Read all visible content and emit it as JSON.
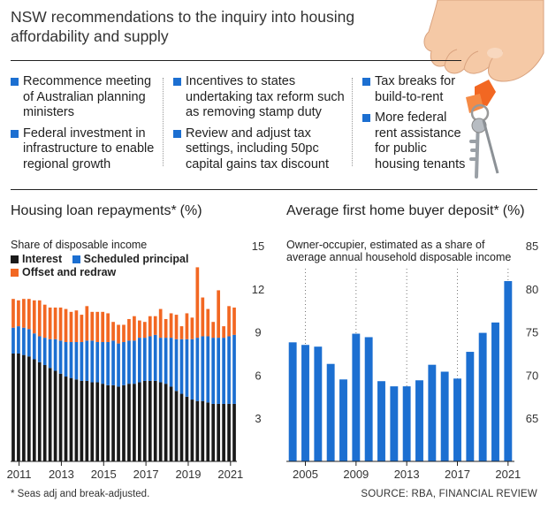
{
  "header": {
    "title": "NSW recommendations to the inquiry into housing affordability and supply"
  },
  "recommendations": {
    "col1": [
      "Recommence meeting of Australian planning ministers",
      "Federal investment in infrastructure to enable regional growth"
    ],
    "col2": [
      "Incentives to states undertaking tax reform such as removing stamp duty",
      "Review and adjust tax settings, including 50pc capital gains tax discount"
    ],
    "col3": [
      "Tax breaks for build-to-rent",
      "More federal rent assistance for public housing tenants"
    ]
  },
  "colors": {
    "interest": "#1a1a1a",
    "scheduled": "#1c6fd1",
    "offset": "#f26722",
    "accent": "#1c6fd1"
  },
  "icons": {
    "illustration": "hand-holding-keys"
  },
  "chart_data": [
    {
      "type": "bar",
      "title": "Housing loan repayments* (%)",
      "subtitle": "Share of disposable income",
      "stacked": true,
      "xticks": [
        "2011",
        "2013",
        "2015",
        "2017",
        "2019",
        "2021"
      ],
      "xrange": [
        2010.6,
        2021.3
      ],
      "ylim": [
        0,
        15
      ],
      "yticks": [
        3,
        6,
        9,
        12,
        15
      ],
      "legend_placement": "top-left",
      "series": [
        {
          "name": "Interest",
          "values": [
            7.5,
            7.5,
            7.4,
            7.3,
            7.1,
            6.9,
            6.7,
            6.5,
            6.3,
            6.1,
            5.9,
            5.8,
            5.7,
            5.6,
            5.6,
            5.5,
            5.5,
            5.4,
            5.3,
            5.3,
            5.2,
            5.3,
            5.4,
            5.4,
            5.5,
            5.6,
            5.6,
            5.6,
            5.5,
            5.4,
            5.2,
            4.9,
            4.7,
            4.5,
            4.3,
            4.2,
            4.2,
            4.1,
            4.0,
            4.0,
            4.0,
            4.0,
            4.0
          ]
        },
        {
          "name": "Scheduled principal",
          "values": [
            1.8,
            1.9,
            1.9,
            1.9,
            1.8,
            1.8,
            1.9,
            2.0,
            2.2,
            2.3,
            2.4,
            2.5,
            2.6,
            2.7,
            2.8,
            2.9,
            2.8,
            2.9,
            3.0,
            3.1,
            3.0,
            3.0,
            3.0,
            3.0,
            3.1,
            3.0,
            3.1,
            3.2,
            3.1,
            3.2,
            3.4,
            3.6,
            3.8,
            4.0,
            4.2,
            4.4,
            4.5,
            4.6,
            4.6,
            4.6,
            4.6,
            4.7,
            4.8
          ]
        },
        {
          "name": "Offset and redraw",
          "values": [
            2.0,
            1.8,
            2.0,
            2.1,
            2.3,
            2.5,
            2.3,
            2.2,
            2.2,
            2.3,
            2.3,
            2.1,
            2.2,
            1.9,
            2.4,
            2.0,
            2.1,
            2.1,
            2.0,
            1.3,
            1.3,
            1.2,
            1.5,
            1.7,
            1.2,
            1.1,
            1.4,
            1.3,
            2.0,
            1.3,
            1.7,
            1.7,
            0.9,
            1.8,
            1.5,
            4.9,
            2.7,
            1.9,
            1.1,
            3.3,
            0.8,
            2.1,
            1.9
          ]
        }
      ]
    },
    {
      "type": "bar",
      "title": "Average first home buyer deposit* (%)",
      "subtitle": "Owner-occupier, estimated as a share of average annual household disposable income",
      "categories": [
        "2004",
        "2005",
        "2006",
        "2007",
        "2008",
        "2009",
        "2010",
        "2011",
        "2012",
        "2013",
        "2014",
        "2015",
        "2016",
        "2017",
        "2018",
        "2019",
        "2020",
        "2021"
      ],
      "xticks": [
        "2005",
        "2009",
        "2013",
        "2017",
        "2021"
      ],
      "values": [
        73.8,
        73.5,
        73.3,
        71.3,
        69.5,
        74.8,
        74.4,
        69.3,
        68.7,
        68.7,
        69.4,
        71.2,
        70.4,
        69.6,
        72.7,
        74.9,
        76.1,
        80.9
      ],
      "ylim": [
        60,
        85
      ],
      "yticks": [
        65,
        70,
        75,
        80,
        85
      ],
      "grid": "dotted vertical lines at tick years"
    }
  ],
  "labels": {
    "left_title": "Housing loan repayments*",
    "left_title_unit": "(%)",
    "left_subtitle": "Share of disposable income",
    "legend_interest": "Interest",
    "legend_scheduled": "Scheduled principal",
    "legend_offset": "Offset and redraw",
    "right_title": "Average first home buyer deposit*",
    "right_title_unit": "(%)",
    "right_subtitle_line1": "Owner-occupier, estimated as a share of",
    "right_subtitle_line2": "average annual household disposable income"
  },
  "footer": {
    "note": "* Seas adj and break-adjusted.",
    "source": "SOURCE: RBA, FINANCIAL REVIEW"
  }
}
